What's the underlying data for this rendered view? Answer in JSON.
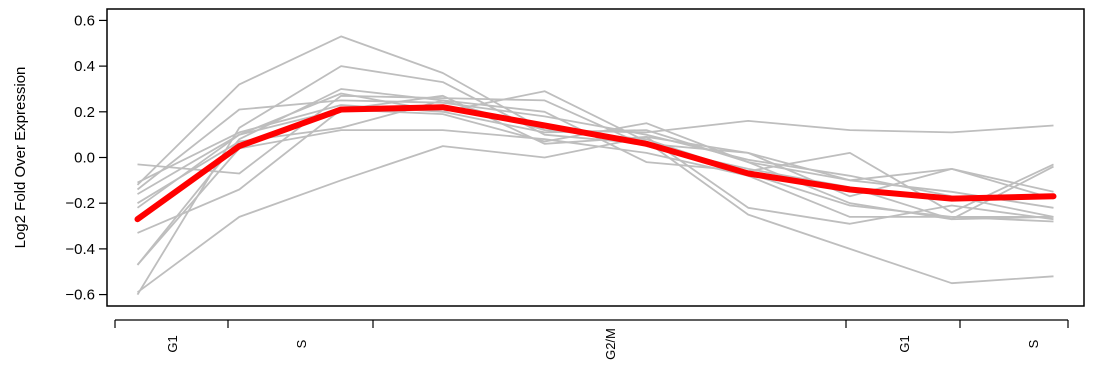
{
  "chart_data": {
    "type": "line",
    "title": "",
    "xlabel": "",
    "ylabel": "Log2 Fold Over Expression",
    "ylim": [
      -0.65,
      0.65
    ],
    "yticks": [
      -0.6,
      -0.4,
      -0.2,
      0.0,
      0.2,
      0.4,
      0.6
    ],
    "ytick_labels": [
      "−0.6",
      "−0.4",
      "−0.2",
      "0.0",
      "0.2",
      "0.4",
      "0.6"
    ],
    "x": [
      1,
      2,
      3,
      4,
      5,
      6,
      7,
      8,
      9,
      10
    ],
    "xlim": [
      0.7,
      10.3
    ],
    "phase_boundaries": [
      0.7,
      1.5,
      2.5,
      7.3,
      8.1,
      10.3
    ],
    "phase_labels": [
      {
        "label": "G1",
        "at": 1.0
      },
      {
        "label": "S",
        "at": 2.0
      },
      {
        "label": "G2/M",
        "at": 5.4
      },
      {
        "label": "G1",
        "at": 7.7
      },
      {
        "label": "S",
        "at": 9.2
      }
    ],
    "grid": false,
    "colors": {
      "gene_lines": "#bebebe",
      "mean_line": "#ff0000"
    },
    "series": [
      {
        "values": [
          -0.12,
          0.32,
          0.53,
          0.37,
          0.12,
          0.08,
          -0.07,
          -0.21,
          -0.26,
          -0.28
        ]
      },
      {
        "values": [
          -0.14,
          0.21,
          0.25,
          0.24,
          0.18,
          0.1,
          -0.01,
          -0.08,
          -0.17,
          -0.26
        ]
      },
      {
        "values": [
          -0.6,
          0.13,
          0.4,
          0.33,
          0.1,
          0.06,
          0.02,
          -0.1,
          -0.05,
          -0.15
        ]
      },
      {
        "values": [
          -0.47,
          0.08,
          0.3,
          0.25,
          0.12,
          0.11,
          0.16,
          0.12,
          0.11,
          0.14
        ]
      },
      {
        "values": [
          -0.03,
          -0.07,
          0.27,
          0.26,
          0.25,
          0.05,
          -0.05,
          -0.13,
          -0.27,
          -0.26
        ]
      },
      {
        "values": [
          -0.22,
          0.1,
          0.28,
          0.2,
          0.29,
          0.07,
          -0.25,
          -0.4,
          -0.55,
          -0.52
        ]
      },
      {
        "values": [
          -0.33,
          -0.14,
          0.21,
          0.19,
          0.07,
          0.15,
          -0.02,
          -0.2,
          -0.27,
          -0.04
        ]
      },
      {
        "values": [
          -0.59,
          -0.26,
          -0.1,
          0.05,
          0.0,
          0.09,
          -0.22,
          -0.29,
          -0.21,
          -0.27
        ]
      },
      {
        "values": [
          -0.47,
          0.04,
          0.12,
          0.12,
          0.08,
          0.02,
          -0.08,
          -0.26,
          -0.26,
          -0.26
        ]
      },
      {
        "values": [
          -0.2,
          0.07,
          0.13,
          0.25,
          0.2,
          -0.02,
          -0.06,
          0.02,
          -0.24,
          -0.03
        ]
      },
      {
        "values": [
          -0.16,
          0.1,
          0.21,
          0.27,
          0.06,
          0.09,
          0.02,
          -0.17,
          -0.05,
          -0.18
        ]
      },
      {
        "values": [
          -0.11,
          0.11,
          0.23,
          0.2,
          0.11,
          0.12,
          -0.02,
          -0.1,
          -0.15,
          -0.22
        ]
      }
    ],
    "mean_values": [
      -0.27,
      0.05,
      0.21,
      0.22,
      0.14,
      0.06,
      -0.07,
      -0.14,
      -0.18,
      -0.17
    ]
  }
}
